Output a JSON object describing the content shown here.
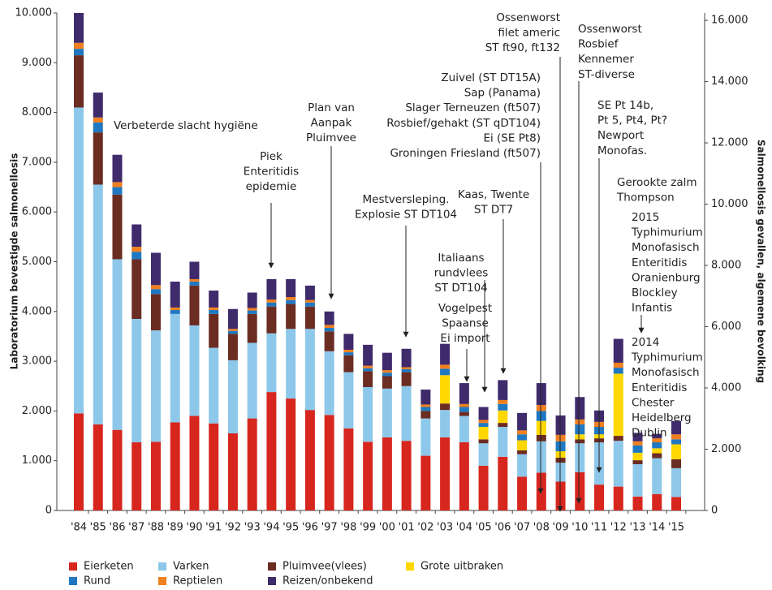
{
  "chart_data": {
    "type": "bar",
    "stacked": true,
    "categories": [
      "'84",
      "'85",
      "'86",
      "'87",
      "'88",
      "'89",
      "'90",
      "'91",
      "'92",
      "'93",
      "'94",
      "'95",
      "'96",
      "'97",
      "'98",
      "'99",
      "'00",
      "'01",
      "'02",
      "'03",
      "'04",
      "'05",
      "'06",
      "'07",
      "'08",
      "'09",
      "'10",
      "'11",
      "'12",
      "'13",
      "'14",
      "'15"
    ],
    "series": [
      {
        "name": "Eierketen",
        "color": "#d7261e",
        "values": [
          1950,
          1730,
          1620,
          1370,
          1380,
          1770,
          1900,
          1750,
          1550,
          1850,
          2380,
          2250,
          2020,
          1920,
          1650,
          1380,
          1470,
          1400,
          1100,
          1470,
          1370,
          900,
          1080,
          680,
          760,
          580,
          770,
          520,
          480,
          280,
          330,
          270
        ]
      },
      {
        "name": "Varken",
        "color": "#8dc8ea",
        "values": [
          6150,
          4820,
          3430,
          2480,
          2240,
          2180,
          1820,
          1520,
          1470,
          1520,
          1180,
          1400,
          1630,
          1280,
          1130,
          1100,
          980,
          1100,
          750,
          550,
          530,
          450,
          600,
          450,
          630,
          380,
          580,
          850,
          920,
          650,
          720,
          580
        ]
      },
      {
        "name": "Pluimvee(vlees)",
        "color": "#6b2c22",
        "values": [
          1050,
          1050,
          1300,
          1200,
          730,
          0,
          800,
          680,
          530,
          580,
          540,
          500,
          450,
          400,
          340,
          320,
          250,
          280,
          150,
          130,
          80,
          80,
          80,
          80,
          130,
          100,
          80,
          80,
          100,
          80,
          100,
          180
        ]
      },
      {
        "name": "Grote uitbraken",
        "color": "#ffd700",
        "values": [
          0,
          0,
          0,
          0,
          0,
          0,
          0,
          0,
          0,
          0,
          0,
          0,
          0,
          0,
          0,
          0,
          0,
          0,
          0,
          570,
          0,
          250,
          250,
          200,
          280,
          130,
          100,
          80,
          1250,
          150,
          100,
          300
        ]
      },
      {
        "name": "Rund",
        "color": "#1f78c1",
        "values": [
          130,
          200,
          150,
          150,
          100,
          80,
          80,
          80,
          60,
          70,
          80,
          80,
          80,
          70,
          60,
          60,
          70,
          60,
          80,
          130,
          100,
          80,
          130,
          120,
          200,
          200,
          200,
          150,
          120,
          150,
          120,
          100
        ]
      },
      {
        "name": "Reptielen",
        "color": "#f07f1e",
        "values": [
          120,
          100,
          100,
          100,
          80,
          50,
          50,
          50,
          40,
          50,
          60,
          60,
          50,
          60,
          50,
          50,
          50,
          40,
          50,
          80,
          60,
          60,
          80,
          80,
          120,
          130,
          100,
          100,
          100,
          80,
          80,
          100
        ]
      },
      {
        "name": "Reizen/onbekend",
        "color": "#3f2a6b",
        "values": [
          600,
          500,
          550,
          450,
          650,
          520,
          350,
          340,
          400,
          310,
          410,
          360,
          290,
          270,
          320,
          420,
          350,
          370,
          300,
          420,
          420,
          260,
          400,
          350,
          440,
          390,
          450,
          230,
          480,
          170,
          90,
          270
        ]
      }
    ],
    "ylabel": "Laboratorium bevestigde salmonellosis",
    "y2label": "Salmonellosis gevallen, algemene bevolking",
    "ylim": [
      0,
      10000
    ],
    "yticks": [
      0,
      {
        "value": 1000,
        "label": "1.000"
      },
      {
        "value": 2000,
        "label": "2.000"
      },
      {
        "value": 3000,
        "label": "3.000"
      },
      {
        "value": 4000,
        "label": "4.000"
      },
      {
        "value": 5000,
        "label": "5.000"
      },
      {
        "value": 6000,
        "label": "6.000"
      },
      {
        "value": 7000,
        "label": "7.000"
      },
      {
        "value": 8000,
        "label": "8.000"
      },
      {
        "value": 9000,
        "label": "9.000"
      },
      {
        "value": 10000,
        "label": "10.000"
      }
    ],
    "y2lim": [
      0,
      16240
    ],
    "y2ticks": [
      0,
      {
        "value": 2000,
        "label": "2.000"
      },
      {
        "value": 4000,
        "label": "4.000"
      },
      {
        "value": 6000,
        "label": "6.000"
      },
      {
        "value": 8000,
        "label": "8.000"
      },
      {
        "value": 10000,
        "label": "10.000"
      },
      {
        "value": 12000,
        "label": "12.000"
      },
      {
        "value": 14000,
        "label": "14.000"
      },
      {
        "value": 16000,
        "label": "16.000"
      }
    ],
    "legend": "bottom",
    "annotations": [
      {
        "lines": [
          "Verbeterde slacht hygiëne"
        ]
      },
      {
        "lines": [
          "Piek",
          "Enteritidis",
          "epidemie"
        ]
      },
      {
        "lines": [
          "Plan van",
          "Aanpak",
          "Pluimvee"
        ]
      },
      {
        "lines": [
          "Mestversleping.",
          "Explosie ST DT104"
        ]
      },
      {
        "lines": [
          "Italiaans",
          "rundvlees",
          "ST DT104"
        ]
      },
      {
        "lines": [
          "Vogelpest",
          "Spaanse",
          "Ei import"
        ]
      },
      {
        "lines": [
          "Kaas, Twente",
          "ST DT7"
        ]
      },
      {
        "lines": [
          "Zuivel (ST DT15A)",
          "Sap (Panama)",
          "Slager Terneuzen (ft507)",
          "Rosbief/gehakt (ST qDT104)",
          "Ei (SE Pt8)",
          "Groningen Friesland (ft507)"
        ]
      },
      {
        "lines": [
          "Ossenworst",
          "filet americ",
          "ST ft90, ft132"
        ]
      },
      {
        "lines": [
          "Ossenworst",
          "Rosbief",
          "Kennemer",
          "ST-diverse"
        ]
      },
      {
        "lines": [
          "SE Pt 14b,",
          "Pt 5, Pt4, Pt?",
          "Newport",
          "Monofas."
        ]
      },
      {
        "lines": [
          "Gerookte zalm",
          "Thompson"
        ]
      },
      {
        "lines": [
          "2015",
          "Typhimurium",
          "Monofasisch",
          "Enteritidis",
          "Oranienburg",
          "Blockley",
          "Infantis"
        ]
      },
      {
        "lines": [
          "2014",
          "Typhimurium",
          "Monofasisch",
          "Enteritidis",
          "Chester",
          "Heidelberg",
          "Dublin"
        ]
      }
    ]
  }
}
